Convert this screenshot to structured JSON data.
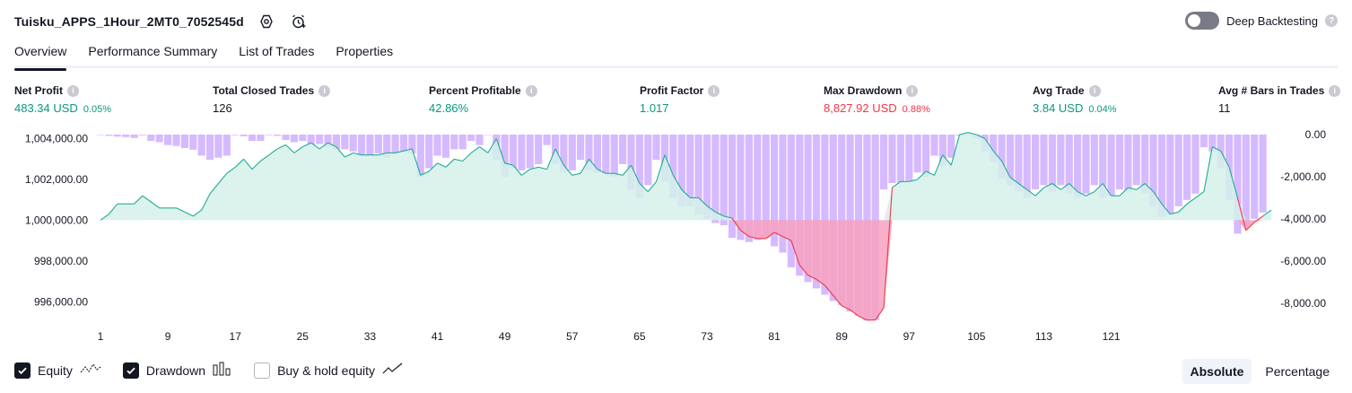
{
  "header": {
    "strategy_title": "Tuisku_APPS_1Hour_2MT0_7052545d",
    "settings_icon": "gear-icon",
    "alert_icon": "alarm-clock-plus-icon",
    "deep_backtesting_label": "Deep Backtesting",
    "deep_backtesting_enabled": false
  },
  "tabs": [
    {
      "label": "Overview",
      "active": true
    },
    {
      "label": "Performance Summary",
      "active": false
    },
    {
      "label": "List of Trades",
      "active": false
    },
    {
      "label": "Properties",
      "active": false
    }
  ],
  "metrics": [
    {
      "label": "Net Profit",
      "value": "483.34 USD",
      "pct": "0.05%",
      "tone": "pos"
    },
    {
      "label": "Total Closed Trades",
      "value": "126",
      "pct": "",
      "tone": "neutral"
    },
    {
      "label": "Percent Profitable",
      "value": "42.86%",
      "pct": "",
      "tone": "pos"
    },
    {
      "label": "Profit Factor",
      "value": "1.017",
      "pct": "",
      "tone": "pos"
    },
    {
      "label": "Max Drawdown",
      "value": "8,827.92 USD",
      "pct": "0.88%",
      "tone": "neg"
    },
    {
      "label": "Avg Trade",
      "value": "3.84 USD",
      "pct": "0.04%",
      "tone": "pos"
    },
    {
      "label": "Avg # Bars in Trades",
      "value": "11",
      "pct": "",
      "tone": "neutral"
    }
  ],
  "colors": {
    "positive": "#089981",
    "negative": "#f23645",
    "equity_line": "#22ab94",
    "equity_fill": "#d5f0ea",
    "loss_fill": "#f7a1c0",
    "drawdown_bar": "#d1b3ff",
    "drawdown_bar_dark": "#b9a3e3"
  },
  "chart_data": {
    "type": "line",
    "baseline": 1000000,
    "ylim_left": [
      995000,
      1004200
    ],
    "left_ticks": [
      "1,004,000.00",
      "1,002,000.00",
      "1,000,000.00",
      "998,000.00",
      "996,000.00"
    ],
    "left_tick_values": [
      1004000,
      1002000,
      1000000,
      998000,
      996000
    ],
    "ylim_right": [
      -8900,
      0
    ],
    "right_ticks": [
      "0.00",
      "-2,000.00",
      "-4,000.00",
      "-6,000.00",
      "-8,000.00"
    ],
    "right_tick_values": [
      0,
      -2000,
      -4000,
      -6000,
      -8000
    ],
    "x_ticks": [
      "1",
      "9",
      "17",
      "25",
      "33",
      "41",
      "49",
      "57",
      "65",
      "73",
      "81",
      "89",
      "97",
      "105",
      "113",
      "121"
    ],
    "x_tick_values": [
      1,
      9,
      17,
      25,
      33,
      41,
      49,
      57,
      65,
      73,
      81,
      89,
      97,
      105,
      113,
      121
    ],
    "series": [
      {
        "name": "Equity",
        "values": [
          1000000,
          1000300,
          1000800,
          1000800,
          1000800,
          1001200,
          1000900,
          1000600,
          1000600,
          1000600,
          1000400,
          1000200,
          1000500,
          1001300,
          1001800,
          1002300,
          1002600,
          1003000,
          1002500,
          1002900,
          1003200,
          1003500,
          1003700,
          1003300,
          1003600,
          1003800,
          1003500,
          1003800,
          1003600,
          1003100,
          1003300,
          1003200,
          1003200,
          1003200,
          1003300,
          1003300,
          1003400,
          1003500,
          1002200,
          1002400,
          1002800,
          1002600,
          1003000,
          1002900,
          1003300,
          1003600,
          1003300,
          1004000,
          1002800,
          1002700,
          1002200,
          1002500,
          1002600,
          1002500,
          1003500,
          1002700,
          1002200,
          1002300,
          1003000,
          1002500,
          1002300,
          1002300,
          1002200,
          1002700,
          1001800,
          1001400,
          1001900,
          1003200,
          1002200,
          1001500,
          1001100,
          1001100,
          1000700,
          1000400,
          1000200,
          1000100,
          999500,
          999200,
          999100,
          999100,
          999400,
          999200,
          999000,
          997800,
          997300,
          997100,
          996800,
          996300,
          995800,
          995600,
          995300,
          995100,
          995100,
          995700,
          1001600,
          1001900,
          1001900,
          1002000,
          1002400,
          1002200,
          1003200,
          1002700,
          1004200,
          1004300,
          1004200,
          1004000,
          1003400,
          1002900,
          1002100,
          1001800,
          1001500,
          1001200,
          1001600,
          1001800,
          1001500,
          1001800,
          1001400,
          1001200,
          1001400,
          1001800,
          1001200,
          1001200,
          1001600,
          1001500,
          1001800,
          1001400,
          1000800,
          1000300,
          1000400,
          1000800,
          1001100,
          1001400,
          1003600,
          1003400,
          1002600,
          1001100,
          999500,
          999900,
          1000200,
          1000500
        ]
      },
      {
        "name": "Drawdown",
        "values": [
          0,
          -60,
          -100,
          -120,
          -160,
          -40,
          -300,
          -360,
          -500,
          -540,
          -640,
          -720,
          -1000,
          -1200,
          -1100,
          -1000,
          -30,
          -80,
          -300,
          -300,
          -30,
          -60,
          -260,
          -360,
          -300,
          -500,
          -450,
          -600,
          -700,
          -700,
          -800,
          -1000,
          -1000,
          -900,
          -1100,
          -900,
          -800,
          -900,
          -2000,
          -1600,
          -1000,
          -1100,
          -700,
          -700,
          -300,
          -500,
          0,
          -1200,
          -2000,
          -1600,
          -1700,
          -1600,
          -1400,
          -500,
          -1400,
          -1800,
          -1700,
          -1200,
          -1700,
          -1800,
          -1900,
          -2000,
          -1400,
          -2600,
          -3000,
          -2400,
          -1200,
          -2200,
          -3000,
          -3400,
          -3400,
          -3800,
          -4000,
          -4200,
          -4300,
          -4900,
          -5000,
          -5100,
          -5000,
          -4900,
          -5300,
          -5600,
          -6300,
          -6700,
          -7000,
          -7300,
          -7600,
          -7900,
          -8100,
          -8400,
          -8600,
          -8828,
          -8800,
          -2600,
          -2300,
          -2300,
          -2200,
          -1800,
          -2000,
          -1000,
          -1500,
          -1100,
          -50,
          0,
          -200,
          -800,
          -1300,
          -2100,
          -2400,
          -2700,
          -3000,
          -2600,
          -2400,
          -2700,
          -2400,
          -2800,
          -3000,
          -2800,
          -2400,
          -3000,
          -2900,
          -2600,
          -2700,
          -2400,
          -2800,
          -3400,
          -3900,
          -3800,
          -3400,
          -3100,
          -2800,
          -600,
          -800,
          -1600,
          -3100,
          -4700,
          -4300,
          -4000,
          -3700
        ]
      }
    ]
  },
  "legend": [
    {
      "label": "Equity",
      "checked": true,
      "icon": "equity-line-icon"
    },
    {
      "label": "Drawdown",
      "checked": true,
      "icon": "drawdown-bars-icon"
    },
    {
      "label": "Buy & hold equity",
      "checked": false,
      "icon": "buy-hold-line-icon"
    }
  ],
  "view_mode": {
    "options": [
      "Absolute",
      "Percentage"
    ],
    "selected": "Absolute"
  }
}
